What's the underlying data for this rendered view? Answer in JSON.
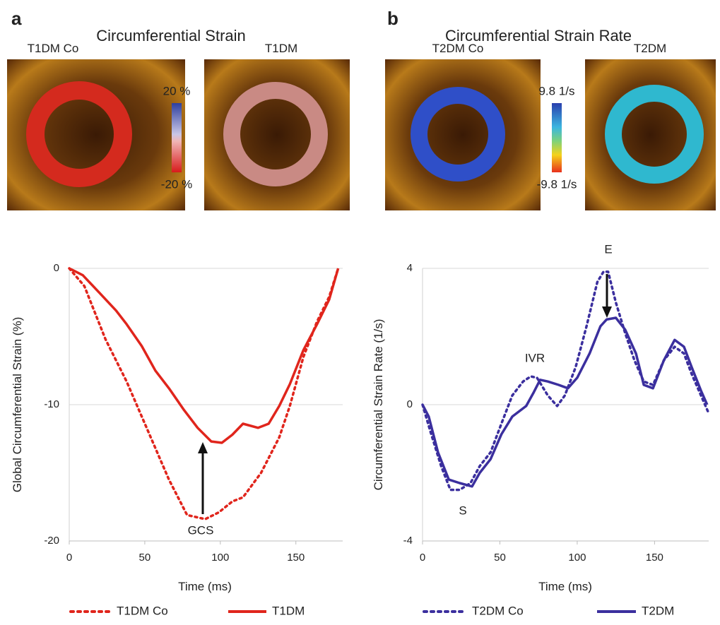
{
  "figure": {
    "panels": [
      {
        "letter": "a",
        "title": "Circumferential Strain",
        "image_labels": [
          "T1DM Co",
          "T1DM"
        ],
        "colorbar_labels": [
          "20 %",
          "-20 %"
        ]
      },
      {
        "letter": "b",
        "title": "Circumferential Strain Rate",
        "image_labels": [
          "T2DM Co",
          "T2DM"
        ],
        "colorbar_labels": [
          "9.8 1/s",
          "-9.8 1/s"
        ]
      }
    ]
  },
  "chart_data": [
    {
      "type": "line",
      "x_label": "Time (ms)",
      "y_label": "Global Circumferential Strain (%)",
      "xlim": [
        0,
        181
      ],
      "xticks": [
        0,
        50,
        100,
        150
      ],
      "ylim": [
        -20,
        0
      ],
      "yticks": [
        0,
        -10,
        -20
      ],
      "grid": true,
      "annotations": [
        "GCS"
      ],
      "series": [
        {
          "name": "T1DM Co",
          "color": "#e0251c",
          "style": "dotted",
          "x": [
            0,
            10,
            24,
            38,
            52,
            66,
            78,
            90,
            99,
            108,
            115,
            127,
            139,
            146,
            155,
            164,
            172,
            178
          ],
          "values": [
            0,
            -1.3,
            -5.2,
            -8.3,
            -11.9,
            -15.5,
            -18.1,
            -18.4,
            -17.9,
            -17.1,
            -16.8,
            -15,
            -12.4,
            -10.1,
            -6.5,
            -3.9,
            -2.1,
            0
          ]
        },
        {
          "name": "T1DM",
          "color": "#e0251c",
          "style": "solid",
          "x": [
            0,
            9,
            20,
            31,
            38,
            48,
            57,
            66,
            76,
            85,
            94,
            101,
            108,
            115,
            125,
            132,
            139,
            146,
            155,
            164,
            172,
            178
          ],
          "values": [
            0,
            -0.5,
            -1.8,
            -3.1,
            -4.1,
            -5.7,
            -7.5,
            -8.8,
            -10.4,
            -11.7,
            -12.7,
            -12.8,
            -12.2,
            -11.4,
            -11.7,
            -11.4,
            -10.1,
            -8.5,
            -6,
            -4.1,
            -2.3,
            0
          ]
        }
      ]
    },
    {
      "type": "line",
      "x_label": "Time (ms)",
      "y_label": "Circumferential Strain Rate (1/s)",
      "xlim": [
        0,
        185
      ],
      "xticks": [
        0,
        50,
        100,
        150
      ],
      "ylim": [
        -4,
        4
      ],
      "yticks": [
        4,
        0,
        -4
      ],
      "grid": true,
      "annotations": [
        "E",
        "IVR",
        "S"
      ],
      "series": [
        {
          "name": "T2DM Co",
          "color": "#3b2f9e",
          "style": "dotted",
          "x": [
            0,
            5,
            12,
            18,
            24,
            31,
            37,
            44,
            51,
            58,
            65,
            70,
            74,
            81,
            87,
            92,
            99,
            106,
            113,
            117,
            120,
            125,
            131,
            137,
            143,
            149,
            156,
            163,
            169,
            174,
            180,
            185
          ],
          "values": [
            0,
            -0.77,
            -1.8,
            -2.5,
            -2.5,
            -2.3,
            -1.8,
            -1.4,
            -0.56,
            0.27,
            0.68,
            0.83,
            0.79,
            0.27,
            -0.04,
            0.27,
            1.1,
            2.3,
            3.6,
            3.9,
            3.9,
            3,
            2.1,
            1.3,
            0.68,
            0.58,
            1.3,
            1.7,
            1.5,
            0.9,
            0.27,
            -0.25
          ]
        },
        {
          "name": "T2DM",
          "color": "#3b2f9e",
          "style": "solid",
          "x": [
            0,
            4,
            10,
            17,
            24,
            32,
            37,
            44,
            51,
            58,
            67,
            72,
            76,
            81,
            88,
            94,
            100,
            108,
            115,
            119,
            125,
            131,
            138,
            143,
            149,
            156,
            163,
            169,
            174,
            180,
            184
          ],
          "values": [
            0,
            -0.35,
            -1.4,
            -2.2,
            -2.3,
            -2.4,
            -2,
            -1.6,
            -0.87,
            -0.35,
            -0.04,
            0.37,
            0.73,
            0.68,
            0.58,
            0.48,
            0.79,
            1.5,
            2.3,
            2.5,
            2.55,
            2.2,
            1.5,
            0.58,
            0.48,
            1.3,
            1.9,
            1.7,
            1.1,
            0.41,
            0
          ]
        }
      ]
    }
  ]
}
